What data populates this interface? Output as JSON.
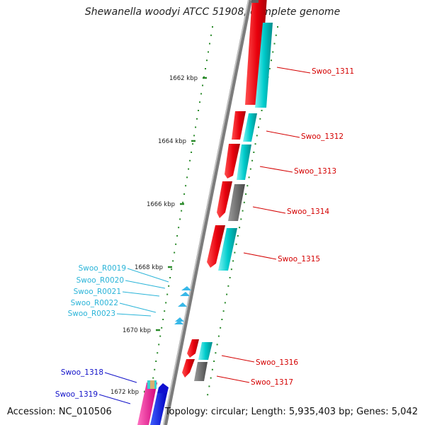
{
  "title": "Shewanella woodyi ATCC 51908, complete genome",
  "footer": {
    "accession": "Accession: NC_010506",
    "summary": "Topology: circular; Length: 5,935,403 bp; Genes: 5,042"
  },
  "colors": {
    "backbone": "#8a8a8a",
    "tick": "#2a8a2a",
    "cds_forward": "#e8000c",
    "cds_reverse": "#00c8c8",
    "pseudo": "#606060",
    "rna": "#38b8e8",
    "label_red": "#d40000",
    "label_cyan": "#2ab4d8",
    "label_blue": "#1010c8"
  },
  "kbp_labels": [
    "1662 kbp",
    "1664 kbp",
    "1666 kbp",
    "1668 kbp",
    "1670 kbp",
    "1672 kbp"
  ],
  "genes_right": [
    {
      "name": "Swoo_1311"
    },
    {
      "name": "Swoo_1312"
    },
    {
      "name": "Swoo_1313"
    },
    {
      "name": "Swoo_1314"
    },
    {
      "name": "Swoo_1315"
    },
    {
      "name": "Swoo_1316"
    },
    {
      "name": "Swoo_1317"
    }
  ],
  "rna_left": [
    {
      "name": "Swoo_R0019"
    },
    {
      "name": "Swoo_R0020"
    },
    {
      "name": "Swoo_R0021"
    },
    {
      "name": "Swoo_R0022"
    },
    {
      "name": "Swoo_R0023"
    }
  ],
  "genes_left": [
    {
      "name": "Swoo_1318"
    },
    {
      "name": "Swoo_1319"
    }
  ]
}
